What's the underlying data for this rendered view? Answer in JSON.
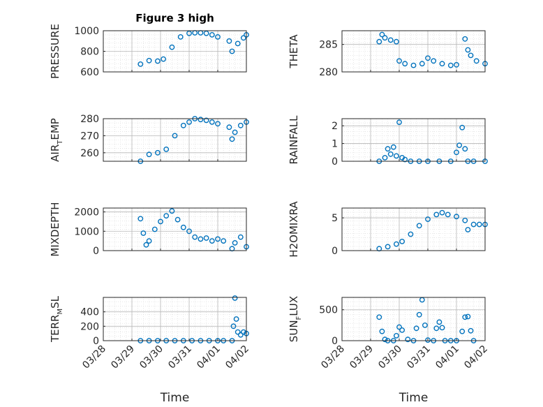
{
  "colors": {
    "marker": "#0072BD",
    "axis": "#262626",
    "grid": "#b8b8b8",
    "minorgrid": "#d8d8d8"
  },
  "chart_data": [
    {
      "type": "scatter",
      "title": "Figure 3 high",
      "ylabel": {
        "main": "PRESSURE"
      },
      "yticks": [
        600,
        800,
        1000
      ],
      "ylim": [
        600,
        1000
      ],
      "xlim": [
        0,
        5
      ],
      "x_tick_labels": [],
      "xlabel": "",
      "grid": true,
      "minor_grid": true,
      "x": [
        1.3,
        1.6,
        1.9,
        2.1,
        2.4,
        2.7,
        3.0,
        3.2,
        3.4,
        3.6,
        3.8,
        4.0,
        4.4,
        4.5,
        4.7,
        4.9,
        5.0
      ],
      "y": [
        675,
        710,
        705,
        725,
        840,
        940,
        975,
        980,
        980,
        975,
        960,
        940,
        900,
        800,
        875,
        930,
        960
      ]
    },
    {
      "type": "scatter",
      "title": "",
      "ylabel": {
        "main": "THETA"
      },
      "yticks": [
        280,
        285
      ],
      "ylim": [
        280,
        287.5
      ],
      "xlim": [
        0,
        5
      ],
      "x_tick_labels": [],
      "xlabel": "",
      "grid": true,
      "minor_grid": true,
      "x": [
        1.3,
        1.4,
        1.5,
        1.7,
        1.9,
        2.0,
        2.2,
        2.5,
        2.8,
        3.0,
        3.2,
        3.5,
        3.8,
        4.0,
        4.3,
        4.4,
        4.5,
        4.7,
        5.0
      ],
      "y": [
        285.5,
        286.8,
        286.2,
        285.8,
        285.5,
        282,
        281.5,
        281.2,
        281.5,
        282.5,
        282,
        281.5,
        281.2,
        281.3,
        286,
        284,
        283,
        282,
        281.5
      ]
    },
    {
      "type": "scatter",
      "title": "",
      "ylabel": {
        "main": "AIR",
        "sub": "T",
        "rest": "EMP"
      },
      "yticks": [
        260,
        270,
        280
      ],
      "ylim": [
        255,
        280
      ],
      "xlim": [
        0,
        5
      ],
      "x_tick_labels": [],
      "xlabel": "",
      "grid": true,
      "minor_grid": true,
      "x": [
        1.3,
        1.6,
        1.9,
        2.2,
        2.5,
        2.8,
        3.0,
        3.2,
        3.4,
        3.6,
        3.8,
        4.0,
        4.4,
        4.5,
        4.6,
        4.8,
        5.0
      ],
      "y": [
        255,
        259,
        260,
        262,
        270,
        276,
        278,
        280,
        279.5,
        279,
        278,
        277,
        275,
        268,
        272,
        276,
        278
      ]
    },
    {
      "type": "scatter",
      "title": "",
      "ylabel": {
        "main": "RAINFALL"
      },
      "yticks": [
        0,
        1,
        2
      ],
      "ylim": [
        0,
        2.4
      ],
      "xlim": [
        0,
        5
      ],
      "x_tick_labels": [],
      "xlabel": "",
      "grid": true,
      "minor_grid": true,
      "x": [
        1.3,
        1.5,
        1.6,
        1.7,
        1.8,
        1.9,
        2.0,
        2.1,
        2.2,
        2.4,
        2.7,
        3.0,
        3.4,
        3.8,
        4.0,
        4.1,
        4.2,
        4.3,
        4.4,
        4.6,
        5.0
      ],
      "y": [
        0,
        0.2,
        0.7,
        0.4,
        0.8,
        0.3,
        2.2,
        0.2,
        0.1,
        0,
        0,
        0,
        0,
        0,
        0.5,
        0.9,
        1.9,
        0.7,
        0,
        0,
        0
      ]
    },
    {
      "type": "scatter",
      "title": "",
      "ylabel": {
        "main": "MIXDEPTH"
      },
      "yticks": [
        0,
        1000,
        2000
      ],
      "ylim": [
        0,
        2200
      ],
      "xlim": [
        0,
        5
      ],
      "x_tick_labels": [],
      "xlabel": "",
      "grid": true,
      "minor_grid": true,
      "x": [
        1.3,
        1.4,
        1.5,
        1.6,
        1.8,
        2.0,
        2.2,
        2.4,
        2.6,
        2.8,
        3.0,
        3.2,
        3.4,
        3.6,
        3.8,
        4.0,
        4.2,
        4.5,
        4.6,
        4.8,
        5.0
      ],
      "y": [
        1650,
        900,
        300,
        500,
        1100,
        1500,
        1800,
        2050,
        1600,
        1200,
        1000,
        700,
        600,
        650,
        500,
        600,
        500,
        100,
        400,
        700,
        200
      ]
    },
    {
      "type": "scatter",
      "title": "",
      "ylabel": {
        "main": "H2OMIXRA"
      },
      "yticks": [
        0,
        5
      ],
      "ylim": [
        0,
        6.5
      ],
      "xlim": [
        0,
        5
      ],
      "x_tick_labels": [],
      "xlabel": "",
      "grid": true,
      "minor_grid": true,
      "x": [
        1.3,
        1.6,
        1.9,
        2.1,
        2.4,
        2.7,
        3.0,
        3.3,
        3.5,
        3.7,
        4.0,
        4.3,
        4.4,
        4.6,
        4.8,
        5.0
      ],
      "y": [
        0.3,
        0.6,
        1,
        1.4,
        2.5,
        3.8,
        4.8,
        5.5,
        5.8,
        5.5,
        5.2,
        4.6,
        3.2,
        4,
        4,
        4
      ]
    },
    {
      "type": "scatter",
      "title": "",
      "ylabel": {
        "main": "TERR",
        "sub": "M",
        "rest": "SL"
      },
      "yticks": [
        0,
        200,
        400
      ],
      "ylim": [
        0,
        600
      ],
      "xlim": [
        0,
        5
      ],
      "x_tick_labels": [
        "03/28",
        "03/29",
        "03/30",
        "03/31",
        "04/01",
        "04/02"
      ],
      "xlabel": "Time",
      "grid": true,
      "minor_grid": true,
      "x": [
        1.3,
        1.6,
        1.9,
        2.2,
        2.5,
        2.8,
        3.1,
        3.4,
        3.7,
        4.0,
        4.2,
        4.5,
        4.55,
        4.6,
        4.65,
        4.7,
        4.8,
        4.9,
        5.0
      ],
      "y": [
        0,
        0,
        0,
        0,
        0,
        0,
        0,
        0,
        0,
        0,
        0,
        0,
        200,
        590,
        300,
        120,
        80,
        120,
        100
      ]
    },
    {
      "type": "scatter",
      "title": "",
      "ylabel": {
        "main": "SUN",
        "sub": "F",
        "rest": "LUX"
      },
      "yticks": [
        0,
        500
      ],
      "ylim": [
        0,
        700
      ],
      "xlim": [
        0,
        5
      ],
      "x_tick_labels": [
        "03/28",
        "03/29",
        "03/30",
        "03/31",
        "04/01",
        "04/02"
      ],
      "xlabel": "Time",
      "grid": true,
      "minor_grid": true,
      "x": [
        1.3,
        1.4,
        1.5,
        1.6,
        1.8,
        1.9,
        2.0,
        2.1,
        2.3,
        2.5,
        2.6,
        2.7,
        2.8,
        2.9,
        3.0,
        3.2,
        3.3,
        3.4,
        3.5,
        3.6,
        3.8,
        4.0,
        4.2,
        4.3,
        4.4,
        4.5,
        4.6
      ],
      "y": [
        380,
        150,
        20,
        0,
        0,
        80,
        220,
        170,
        20,
        0,
        200,
        420,
        660,
        250,
        10,
        0,
        200,
        300,
        210,
        0,
        0,
        0,
        150,
        380,
        390,
        160,
        0
      ]
    }
  ]
}
